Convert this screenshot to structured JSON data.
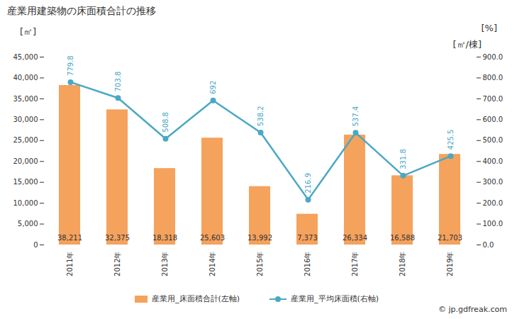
{
  "chart_data": {
    "type": "bar",
    "title": "産業用建築物の床面積合計の推移",
    "categories": [
      "2011年",
      "2012年",
      "2013年",
      "2014年",
      "2015年",
      "2016年",
      "2017年",
      "2018年",
      "2019年"
    ],
    "series": [
      {
        "name": "産業用_床面積合計(左軸)",
        "type": "bar",
        "color": "#f5a25d",
        "values": [
          38211,
          32375,
          18318,
          25603,
          13992,
          7373,
          26334,
          16588,
          21703
        ],
        "value_labels": [
          "38,211",
          "32,375",
          "18,318",
          "25,603",
          "13,992",
          "7,373",
          "26,334",
          "16,588",
          "21,703"
        ]
      },
      {
        "name": "産業用_平均床面積(右軸)",
        "type": "line",
        "axis": "y2",
        "color": "#4aa8c4",
        "marker": "circle",
        "values": [
          779.8,
          703.8,
          508.8,
          692,
          538.2,
          216.9,
          537.4,
          331.8,
          425.5
        ]
      }
    ],
    "y_label": "[㎡]",
    "y2_label": "[㎡/棟]",
    "annotations": [
      "[%]"
    ],
    "source": "© jp.gdfreak.com",
    "ylim": [
      0,
      45000
    ],
    "yticks": [
      0,
      {
        "value": 5000,
        "label": "5,000"
      },
      {
        "value": 10000,
        "label": "10,000"
      },
      {
        "value": 15000,
        "label": "15,000"
      },
      {
        "value": 20000,
        "label": "20,000"
      },
      {
        "value": 25000,
        "label": "25,000"
      },
      {
        "value": 30000,
        "label": "30,000"
      },
      {
        "value": 35000,
        "label": "35,000"
      },
      {
        "value": 40000,
        "label": "40,000"
      },
      {
        "value": 45000,
        "label": "45,000"
      }
    ],
    "y2lim": [
      0,
      900
    ],
    "y2ticks": [
      {
        "value": 0,
        "label": "0.0"
      },
      {
        "value": 100,
        "label": "100.0"
      },
      {
        "value": 200,
        "label": "200.0"
      },
      {
        "value": 300,
        "label": "300.0"
      },
      {
        "value": 400,
        "label": "400.0"
      },
      {
        "value": 500,
        "label": "500.0"
      },
      {
        "value": 600,
        "label": "600.0"
      },
      {
        "value": 700,
        "label": "700.0"
      },
      {
        "value": 800,
        "label": "800.0"
      },
      {
        "value": 900,
        "label": "900.0"
      }
    ],
    "grid": false,
    "data_labels": true,
    "legend": "bottom"
  }
}
